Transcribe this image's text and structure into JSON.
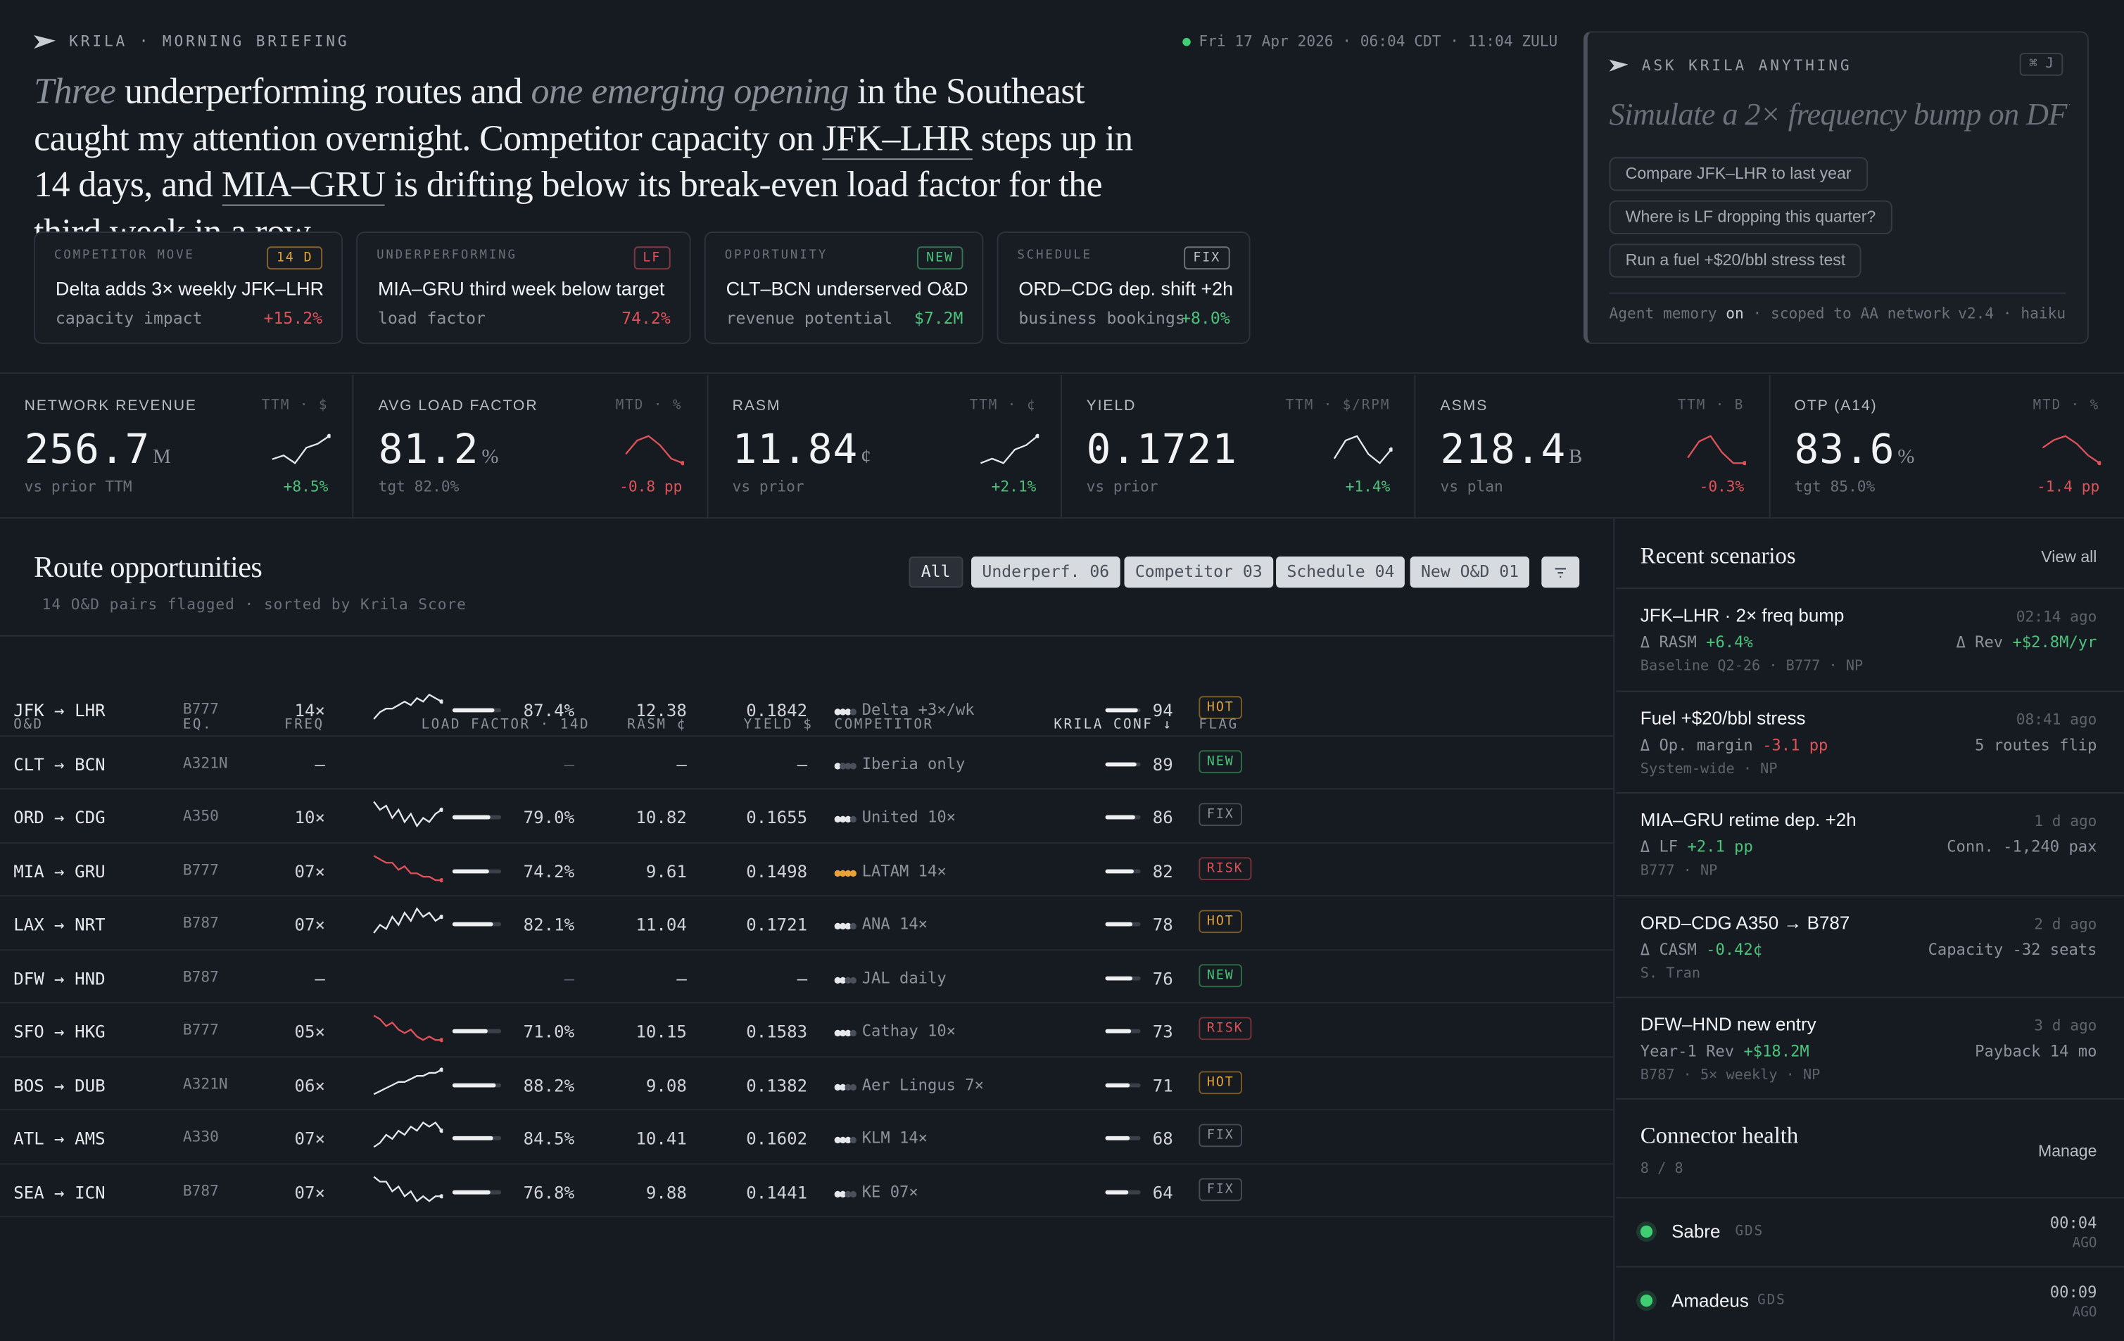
{
  "brand": "KRILA · MORNING BRIEFING",
  "clock": "Fri 17 Apr 2026 · 06:04 CDT · 11:04 ZULU",
  "headline": {
    "w1": "Three",
    "t1": " underperforming routes and ",
    "w2": "one emerging opening",
    "t2": " in the Southeast caught my attention overnight. Competitor capacity on ",
    "r1": "JFK–LHR",
    "t3": " steps up in 14 days, and ",
    "r2": "MIA–GRU",
    "t4": " is drifting below its break-even load factor for the third week in a row."
  },
  "briefing_cards": [
    {
      "category": "COMPETITOR MOVE",
      "tag": "14 D",
      "tag_color": "#e8a23a",
      "title": "Delta adds 3× weekly JFK–LHR",
      "sub": "capacity impact",
      "value": "+15.2%",
      "tone": "neg"
    },
    {
      "category": "UNDERPERFORMING",
      "tag": "LF",
      "tag_color": "#e0525a",
      "title": "MIA–GRU third week below target",
      "sub": "load factor",
      "value": "74.2%",
      "tone": "neg"
    },
    {
      "category": "OPPORTUNITY",
      "tag": "NEW",
      "tag_color": "#4cc27a",
      "title": "CLT–BCN underserved O&D",
      "sub": "revenue potential",
      "value": "$7.2M",
      "tone": "pos"
    },
    {
      "category": "SCHEDULE",
      "tag": "FIX",
      "tag_color": "#b8bdc4",
      "title": "ORD–CDG dep. shift +2h",
      "sub": "business bookings",
      "value": "+8.0%",
      "tone": "pos"
    }
  ],
  "ask": {
    "label": "ASK KRILA ANYTHING",
    "kbd": "⌘ J",
    "placeholder": "Simulate a 2× frequency bump on DFW–HND",
    "suggestions": [
      "Compare JFK–LHR to last year",
      "Where is LF dropping this quarter?",
      "Run a fuel +$20/bbl stress test"
    ],
    "footer_a": "Agent memory",
    "footer_b": "on",
    "footer_c": "· scoped to AA network",
    "footer_ver": "v2.4 · haiku"
  },
  "kpis": [
    {
      "title": "NETWORK REVENUE",
      "unit": "TTM · $",
      "value": "256.7",
      "suffix": "M",
      "sub": "vs prior TTM",
      "delta": "+8.5%",
      "tone": "pos",
      "trend": [
        3,
        4,
        2,
        6,
        7,
        9
      ]
    },
    {
      "title": "AVG LOAD FACTOR",
      "unit": "MTD · %",
      "value": "81.2",
      "suffix": "%",
      "sub": "tgt 82.0%",
      "delta": "-0.8 pp",
      "tone": "neg",
      "trend": [
        5,
        8,
        9,
        7,
        4,
        3
      ]
    },
    {
      "title": "RASM",
      "unit": "TTM · ¢",
      "value": "11.84",
      "suffix": "¢",
      "sub": "vs prior",
      "delta": "+2.1%",
      "tone": "pos",
      "trend": [
        3,
        4,
        3,
        6,
        7,
        9
      ]
    },
    {
      "title": "YIELD",
      "unit": "TTM · $/RPM",
      "value": "0.1721",
      "suffix": "",
      "sub": "vs prior",
      "delta": "+1.4%",
      "tone": "pos",
      "trend": [
        4,
        8,
        9,
        5,
        3,
        6
      ]
    },
    {
      "title": "ASMS",
      "unit": "TTM · B",
      "value": "218.4",
      "suffix": "B",
      "sub": "vs plan",
      "delta": "-0.3%",
      "tone": "neg",
      "trend": [
        5,
        8,
        9,
        6,
        4,
        4
      ]
    },
    {
      "title": "OTP (A14)",
      "unit": "MTD · %",
      "value": "83.6",
      "suffix": "%",
      "sub": "tgt 85.0%",
      "delta": "-1.4 pp",
      "tone": "neg",
      "trend": [
        6,
        8,
        9,
        7,
        4,
        2
      ]
    }
  ],
  "routes": {
    "title": "Route opportunities",
    "subtitle": "14 O&D pairs flagged · sorted by Krila Score",
    "filters": [
      "All",
      "Underperf. 06",
      "Competitor 03",
      "Schedule 04",
      "New O&D 01"
    ],
    "columns": {
      "od": "O&D",
      "eq": "EQ.",
      "freq": "FREQ",
      "lf": "LOAD FACTOR · 14D",
      "rasm": "RASM ¢",
      "yield": "YIELD $",
      "comp": "COMPETITOR",
      "conf": "KRILA CONF ↓",
      "flag": "FLAG"
    },
    "rows": [
      {
        "od": "JFK → LHR",
        "eq": "B777",
        "freq": "14×",
        "lf": "87.4%",
        "lf_val": 0.874,
        "rasm": "12.38",
        "yield": "0.1842",
        "comp": "Delta +3×/wk",
        "comp_level": 3,
        "conf": "94",
        "conf_val": 0.94,
        "flag": "HOT",
        "trend_color": "#e6e8eb",
        "trend": [
          3,
          5,
          6,
          6,
          7,
          8,
          7,
          9,
          8,
          10,
          9,
          8
        ]
      },
      {
        "od": "CLT → BCN",
        "eq": "A321N",
        "freq": "—",
        "lf": "—",
        "lf_val": 0,
        "rasm": "—",
        "yield": "—",
        "comp": "Iberia only",
        "comp_level": 1,
        "conf": "89",
        "conf_val": 0.89,
        "flag": "NEW",
        "trend_color": "",
        "trend": []
      },
      {
        "od": "ORD → CDG",
        "eq": "A350",
        "freq": "10×",
        "lf": "79.0%",
        "lf_val": 0.79,
        "rasm": "10.82",
        "yield": "0.1655",
        "comp": "United 10×",
        "comp_level": 3,
        "conf": "86",
        "conf_val": 0.86,
        "flag": "FIX",
        "trend_color": "#e6e8eb",
        "trend": [
          8,
          6,
          7,
          4,
          6,
          3,
          5,
          2,
          4,
          3,
          5,
          6
        ]
      },
      {
        "od": "MIA → GRU",
        "eq": "B777",
        "freq": "07×",
        "lf": "74.2%",
        "lf_val": 0.742,
        "rasm": "9.61",
        "yield": "0.1498",
        "comp": "LATAM 14×",
        "comp_level": 4,
        "conf": "82",
        "conf_val": 0.82,
        "flag": "RISK",
        "trend_color": "#e0525a",
        "trend": [
          9,
          8,
          7,
          7,
          5,
          6,
          4,
          4,
          3,
          3,
          2,
          2
        ]
      },
      {
        "od": "LAX → NRT",
        "eq": "B787",
        "freq": "07×",
        "lf": "82.1%",
        "lf_val": 0.821,
        "rasm": "11.04",
        "yield": "0.1721",
        "comp": "ANA 14×",
        "comp_level": 3,
        "conf": "78",
        "conf_val": 0.78,
        "flag": "HOT",
        "trend_color": "#e6e8eb",
        "trend": [
          3,
          5,
          4,
          7,
          5,
          8,
          6,
          9,
          7,
          8,
          6,
          7
        ]
      },
      {
        "od": "DFW → HND",
        "eq": "B787",
        "freq": "—",
        "lf": "—",
        "lf_val": 0,
        "rasm": "—",
        "yield": "—",
        "comp": "JAL daily",
        "comp_level": 2,
        "conf": "76",
        "conf_val": 0.76,
        "flag": "NEW",
        "trend_color": "",
        "trend": []
      },
      {
        "od": "SFO → HKG",
        "eq": "B777",
        "freq": "05×",
        "lf": "71.0%",
        "lf_val": 0.71,
        "rasm": "10.15",
        "yield": "0.1583",
        "comp": "Cathay 10×",
        "comp_level": 3,
        "conf": "73",
        "conf_val": 0.73,
        "flag": "RISK",
        "trend_color": "#e0525a",
        "trend": [
          9,
          8,
          6,
          7,
          5,
          4,
          5,
          3,
          2,
          3,
          2,
          2
        ]
      },
      {
        "od": "BOS → DUB",
        "eq": "A321N",
        "freq": "06×",
        "lf": "88.2%",
        "lf_val": 0.882,
        "rasm": "9.08",
        "yield": "0.1382",
        "comp": "Aer Lingus 7×",
        "comp_level": 2,
        "conf": "71",
        "conf_val": 0.71,
        "flag": "HOT",
        "trend_color": "#e6e8eb",
        "trend": [
          2,
          3,
          4,
          5,
          6,
          6,
          7,
          8,
          8,
          9,
          9,
          10
        ]
      },
      {
        "od": "ATL → AMS",
        "eq": "A330",
        "freq": "07×",
        "lf": "84.5%",
        "lf_val": 0.845,
        "rasm": "10.41",
        "yield": "0.1602",
        "comp": "KLM 14×",
        "comp_level": 3,
        "conf": "68",
        "conf_val": 0.68,
        "flag": "FIX",
        "trend_color": "#e6e8eb",
        "trend": [
          3,
          4,
          6,
          5,
          7,
          6,
          8,
          7,
          9,
          8,
          9,
          7
        ]
      },
      {
        "od": "SEA → ICN",
        "eq": "B787",
        "freq": "07×",
        "lf": "76.8%",
        "lf_val": 0.768,
        "rasm": "9.88",
        "yield": "0.1441",
        "comp": "KE 07×",
        "comp_level": 2,
        "conf": "64",
        "conf_val": 0.64,
        "flag": "FIX",
        "trend_color": "#e6e8eb",
        "trend": [
          8,
          7,
          7,
          5,
          6,
          4,
          5,
          3,
          4,
          3,
          4,
          4
        ]
      }
    ]
  },
  "scenarios": {
    "title": "Recent scenarios",
    "view_all": "View all",
    "items": [
      {
        "name": "JFK–LHR · 2× freq bump",
        "time": "02:14 ago",
        "m1_label": "Δ RASM",
        "m1_val": "+6.4%",
        "m1_tone": "pos",
        "m2_label": "Δ Rev",
        "m2_val": "+$2.8M/yr",
        "m2_tone": "pos",
        "meta": "Baseline Q2-26 · B777 · NP"
      },
      {
        "name": "Fuel +$20/bbl stress",
        "time": "08:41 ago",
        "m1_label": "Δ Op. margin",
        "m1_val": "-3.1 pp",
        "m1_tone": "neg",
        "m2_label": "5 routes flip",
        "m2_val": "",
        "m2_tone": "",
        "meta": "System-wide · NP"
      },
      {
        "name": "MIA–GRU retime dep. +2h",
        "time": "1 d ago",
        "m1_label": "Δ LF",
        "m1_val": "+2.1 pp",
        "m1_tone": "pos",
        "m2_label": "Conn. -1,240 pax",
        "m2_val": "",
        "m2_tone": "",
        "meta": "B777 · NP"
      },
      {
        "name": "ORD–CDG A350 → B787",
        "time": "2 d ago",
        "m1_label": "Δ CASM",
        "m1_val": "-0.42¢",
        "m1_tone": "pos",
        "m2_label": "Capacity -32 seats",
        "m2_val": "",
        "m2_tone": "",
        "meta": "S. Tran"
      },
      {
        "name": "DFW–HND new entry",
        "time": "3 d ago",
        "m1_label": "Year-1 Rev",
        "m1_val": "+$18.2M",
        "m1_tone": "pos",
        "m2_label": "Payback 14 mo",
        "m2_val": "",
        "m2_tone": "",
        "meta": "B787 · 5× weekly · NP"
      }
    ]
  },
  "connectors": {
    "title": "Connector health",
    "count": "8 / 8",
    "manage": "Manage",
    "items": [
      {
        "name": "Sabre",
        "kind": "GDS",
        "latency": "00:04",
        "ago": "AGO",
        "status_color": "#3fcf72"
      },
      {
        "name": "Amadeus",
        "kind": "GDS",
        "latency": "00:09",
        "ago": "AGO",
        "status_color": "#3fcf72"
      }
    ]
  },
  "colors": {
    "bg": "#161a21",
    "accent_pos": "#4cc27a",
    "accent_neg": "#e0525a",
    "hot": "#e8a23a"
  }
}
